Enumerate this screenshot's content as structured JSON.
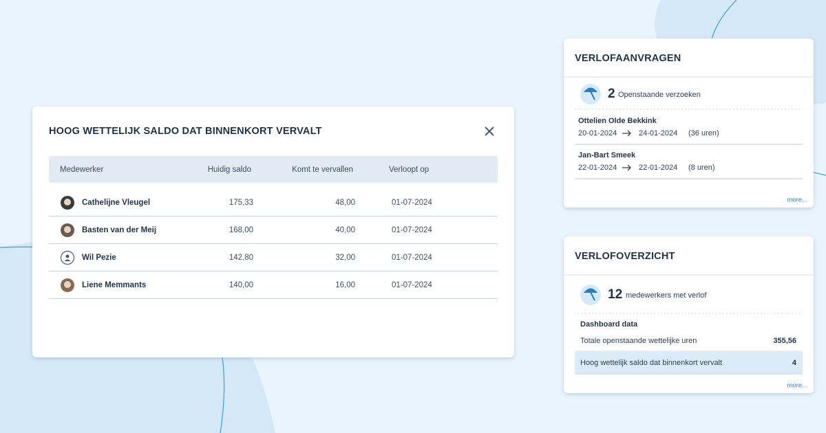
{
  "main_panel": {
    "title": "HOOG WETTELIJK SALDO DAT BINNENKORT VERVALT",
    "table": {
      "columns": [
        "Medewerker",
        "Huidig saldo",
        "Komt te vervallen",
        "Verloopt op"
      ],
      "rows": [
        [
          "Cathelijne Vleugel",
          "175,33",
          "48,00",
          "01-07-2024"
        ],
        [
          "Basten van der Meij",
          "168,00",
          "40,00",
          "01-07-2024"
        ],
        [
          "Wil Pezie",
          "142,80",
          "32,00",
          "01-07-2024"
        ],
        [
          "Liene Memmants",
          "140,00",
          "16,00",
          "01-07-2024"
        ]
      ]
    }
  },
  "leave_requests": {
    "title": "VERLOFAANVRAGEN",
    "count": "2",
    "count_label": "Openstaande verzoeken",
    "requests": [
      {
        "name": "Ottelien Olde Bekkink",
        "from": "20-01-2024",
        "to": "24-01-2024",
        "hours": "(36 uren)"
      },
      {
        "name": "Jan-Bart Smeek",
        "from": "22-01-2024",
        "to": "22-01-2024",
        "hours": "(8 uren)"
      }
    ],
    "more": "more..."
  },
  "leave_overview": {
    "title": "VERLOFOVERZICHT",
    "count": "12",
    "count_label": "medewerkers met verlof",
    "section_title": "Dashboard data",
    "rows": [
      {
        "label": "Totale openstaande wettelijke uren",
        "value": "355,56"
      },
      {
        "label": "Hoog wettelijk saldo dat binnenkort vervalt",
        "value": "4"
      }
    ],
    "more": "more..."
  }
}
